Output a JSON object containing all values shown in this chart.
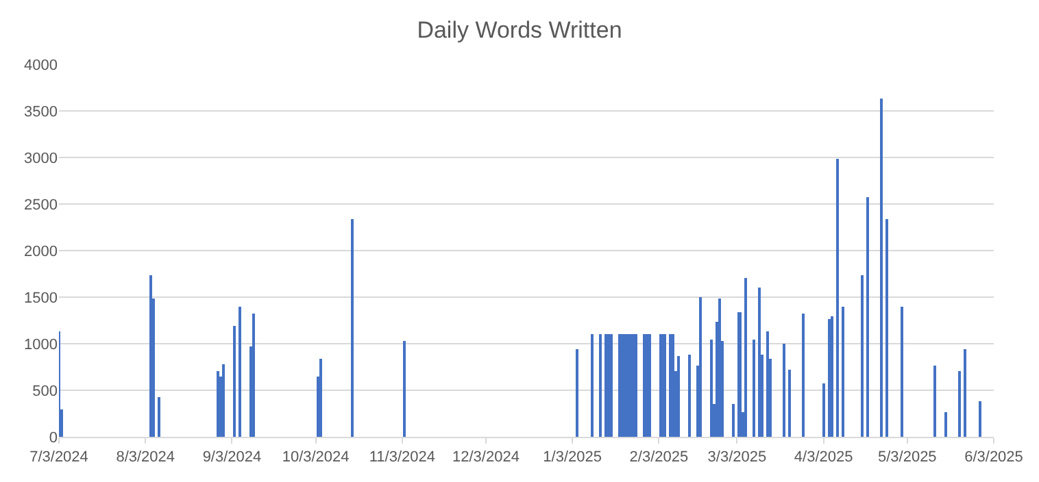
{
  "chart_data": {
    "type": "bar",
    "title": "Daily Words Written",
    "x": [
      "2024-07-03",
      "2024-07-04",
      "2024-08-05",
      "2024-08-06",
      "2024-08-08",
      "2024-08-29",
      "2024-08-30",
      "2024-08-31",
      "2024-09-04",
      "2024-09-06",
      "2024-09-10",
      "2024-09-11",
      "2024-10-04",
      "2024-10-05",
      "2024-10-16",
      "2024-11-04",
      "2025-01-05",
      "2025-01-10",
      "2025-01-13",
      "2025-01-15",
      "2025-01-16",
      "2025-01-17",
      "2025-01-20",
      "2025-01-21",
      "2025-01-22",
      "2025-01-23",
      "2025-01-24",
      "2025-01-25",
      "2025-01-26",
      "2025-01-29",
      "2025-01-30",
      "2025-01-31",
      "2025-02-04",
      "2025-02-05",
      "2025-02-07",
      "2025-02-08",
      "2025-02-09",
      "2025-02-10",
      "2025-02-14",
      "2025-02-17",
      "2025-02-18",
      "2025-02-22",
      "2025-02-23",
      "2025-02-24",
      "2025-02-25",
      "2025-02-26",
      "2025-03-02",
      "2025-03-04",
      "2025-03-05",
      "2025-03-06",
      "2025-03-09",
      "2025-03-11",
      "2025-03-12",
      "2025-03-14",
      "2025-03-15",
      "2025-03-20",
      "2025-03-22",
      "2025-03-27",
      "2025-04-03",
      "2025-04-05",
      "2025-04-06",
      "2025-04-08",
      "2025-04-10",
      "2025-04-17",
      "2025-04-19",
      "2025-04-24",
      "2025-04-26",
      "2025-05-01",
      "2025-05-13",
      "2025-05-17",
      "2025-05-22",
      "2025-05-24",
      "2025-05-29"
    ],
    "values": [
      1130,
      300,
      1740,
      1480,
      420,
      710,
      650,
      780,
      1190,
      1400,
      970,
      1330,
      640,
      840,
      2340,
      1030,
      940,
      1100,
      1100,
      1100,
      1100,
      1100,
      1100,
      1100,
      1100,
      1100,
      1100,
      1100,
      1100,
      1100,
      1100,
      1100,
      1100,
      1100,
      1100,
      1100,
      710,
      870,
      880,
      770,
      1500,
      1040,
      360,
      1230,
      1490,
      1030,
      360,
      1340,
      260,
      1700,
      1050,
      1600,
      880,
      1130,
      840,
      1000,
      720,
      1330,
      580,
      1260,
      1300,
      2980,
      1400,
      1730,
      2570,
      3630,
      2340,
      1390,
      770,
      260,
      710,
      940,
      380
    ],
    "color": "#4472c4",
    "xlim": [
      "2024-07-03",
      "2025-06-03"
    ],
    "xticks": [
      {
        "value": "2024-07-03",
        "label": "7/3/2024"
      },
      {
        "value": "2024-08-03",
        "label": "8/3/2024"
      },
      {
        "value": "2024-09-03",
        "label": "9/3/2024"
      },
      {
        "value": "2024-10-03",
        "label": "10/3/2024"
      },
      {
        "value": "2024-11-03",
        "label": "11/3/2024"
      },
      {
        "value": "2024-12-03",
        "label": "12/3/2024"
      },
      {
        "value": "2025-01-03",
        "label": "1/3/2025"
      },
      {
        "value": "2025-02-03",
        "label": "2/3/2025"
      },
      {
        "value": "2025-03-03",
        "label": "3/3/2025"
      },
      {
        "value": "2025-04-03",
        "label": "4/3/2025"
      },
      {
        "value": "2025-05-03",
        "label": "5/3/2025"
      },
      {
        "value": "2025-06-03",
        "label": "6/3/2025"
      }
    ],
    "ylim": [
      0,
      4000
    ],
    "yticks": [
      0,
      500,
      1000,
      1500,
      2000,
      2500,
      3000,
      3500,
      4000
    ],
    "grid": "y"
  }
}
